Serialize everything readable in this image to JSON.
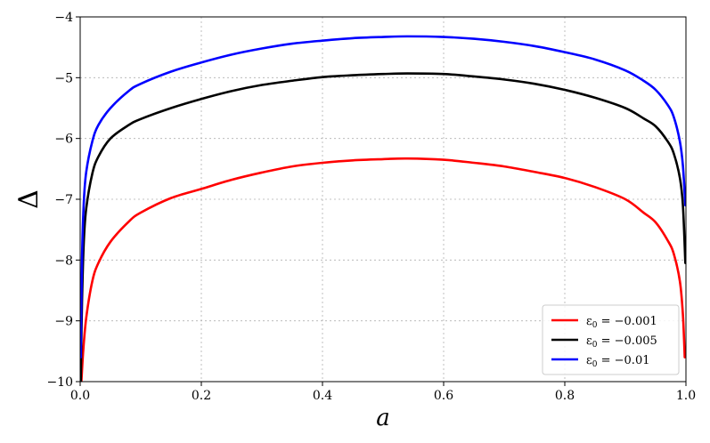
{
  "chart_data": {
    "type": "line",
    "title": "",
    "xlabel": "a",
    "ylabel": "Δ",
    "xlim": [
      0.0,
      1.0
    ],
    "ylim": [
      -10,
      -4
    ],
    "xticks": [
      0.0,
      0.2,
      0.4,
      0.6,
      0.8,
      1.0
    ],
    "xtick_labels": [
      "0.0",
      "0.2",
      "0.4",
      "0.6",
      "0.8",
      "1.0"
    ],
    "yticks": [
      -10,
      -9,
      -8,
      -7,
      -6,
      -5,
      -4
    ],
    "ytick_labels": [
      "−10",
      "−9",
      "−8",
      "−7",
      "−6",
      "−5",
      "−4"
    ],
    "grid": true,
    "legend_position": "bottom-right",
    "series": [
      {
        "name": "ε0 = −0.001",
        "legend_main": "ε",
        "legend_sub": "0",
        "legend_rest": " = −0.001",
        "color": "#ff0000",
        "x": [
          0.002,
          0.005,
          0.01,
          0.02,
          0.03,
          0.05,
          0.08,
          0.1,
          0.15,
          0.2,
          0.25,
          0.3,
          0.35,
          0.4,
          0.45,
          0.5,
          0.54,
          0.6,
          0.65,
          0.7,
          0.75,
          0.8,
          0.85,
          0.9,
          0.93,
          0.95,
          0.97,
          0.98,
          0.99,
          0.995,
          0.998
        ],
        "y": [
          -10.0,
          -9.5,
          -8.95,
          -8.35,
          -8.05,
          -7.7,
          -7.37,
          -7.22,
          -6.98,
          -6.83,
          -6.68,
          -6.56,
          -6.46,
          -6.4,
          -6.36,
          -6.34,
          -6.33,
          -6.35,
          -6.4,
          -6.46,
          -6.55,
          -6.65,
          -6.8,
          -7.0,
          -7.22,
          -7.38,
          -7.68,
          -7.9,
          -8.35,
          -8.9,
          -9.6
        ]
      },
      {
        "name": "ε0 = −0.005",
        "legend_main": "ε",
        "legend_sub": "0",
        "legend_rest": " = −0.005",
        "color": "#000000",
        "x": [
          0.001,
          0.003,
          0.006,
          0.01,
          0.02,
          0.03,
          0.05,
          0.08,
          0.1,
          0.15,
          0.2,
          0.25,
          0.3,
          0.35,
          0.4,
          0.45,
          0.5,
          0.54,
          0.6,
          0.65,
          0.7,
          0.75,
          0.8,
          0.85,
          0.9,
          0.93,
          0.95,
          0.97,
          0.98,
          0.99,
          0.995,
          0.999
        ],
        "y": [
          -10.0,
          -8.7,
          -7.7,
          -7.15,
          -6.58,
          -6.3,
          -6.0,
          -5.78,
          -5.68,
          -5.5,
          -5.35,
          -5.22,
          -5.12,
          -5.05,
          -4.99,
          -4.96,
          -4.94,
          -4.93,
          -4.94,
          -4.98,
          -5.03,
          -5.1,
          -5.2,
          -5.33,
          -5.5,
          -5.67,
          -5.8,
          -6.05,
          -6.25,
          -6.65,
          -7.1,
          -8.05
        ]
      },
      {
        "name": "ε0 = −0.01",
        "legend_main": "ε",
        "legend_sub": "0",
        "legend_rest": " = −0.01",
        "color": "#0000ff",
        "x": [
          0.001,
          0.003,
          0.006,
          0.01,
          0.02,
          0.03,
          0.05,
          0.08,
          0.1,
          0.15,
          0.2,
          0.25,
          0.3,
          0.35,
          0.4,
          0.45,
          0.5,
          0.54,
          0.6,
          0.65,
          0.7,
          0.75,
          0.8,
          0.85,
          0.9,
          0.93,
          0.95,
          0.97,
          0.98,
          0.99,
          0.995,
          0.999
        ],
        "y": [
          -9.6,
          -8.0,
          -7.05,
          -6.55,
          -6.05,
          -5.78,
          -5.5,
          -5.22,
          -5.1,
          -4.9,
          -4.75,
          -4.62,
          -4.52,
          -4.44,
          -4.39,
          -4.35,
          -4.33,
          -4.32,
          -4.33,
          -4.36,
          -4.41,
          -4.48,
          -4.58,
          -4.7,
          -4.88,
          -5.05,
          -5.2,
          -5.45,
          -5.65,
          -6.05,
          -6.45,
          -7.1
        ]
      }
    ]
  }
}
